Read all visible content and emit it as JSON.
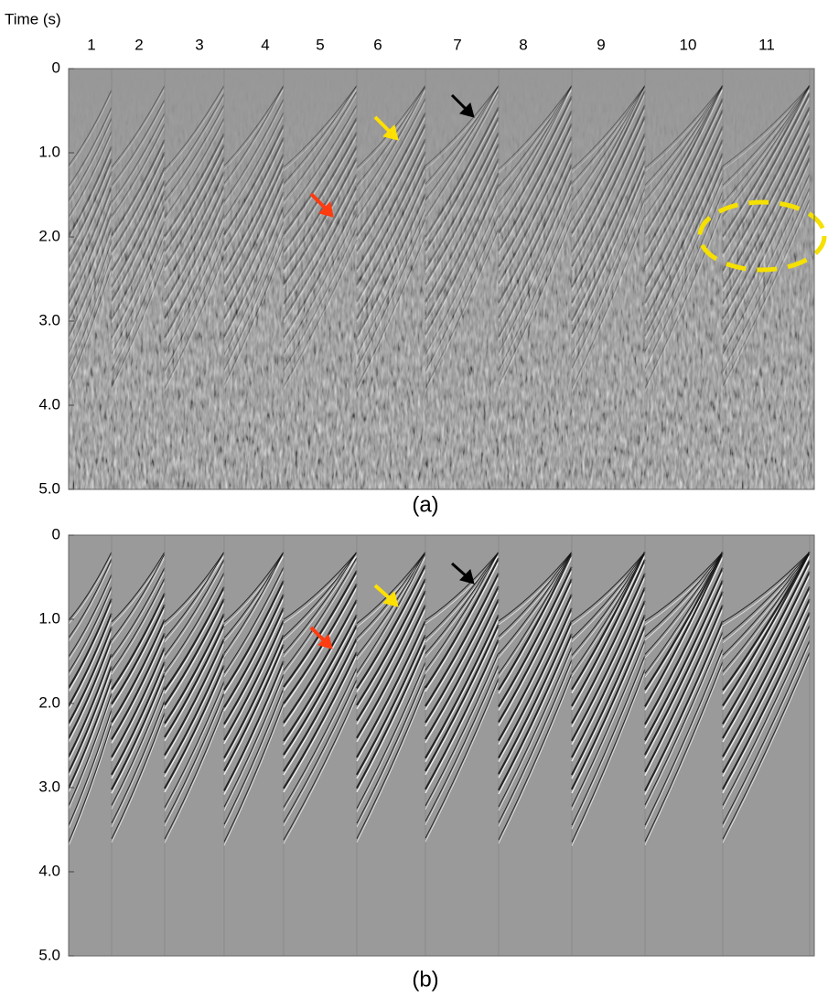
{
  "figure": {
    "y_axis_label": "Time (s)",
    "shot_labels": [
      "1",
      "2",
      "3",
      "4",
      "5",
      "6",
      "7",
      "8",
      "9",
      "10",
      "11"
    ],
    "panels": [
      {
        "caption": "(a)",
        "yticks": [
          "0",
          "1.0",
          "2.0",
          "3.0",
          "4.0",
          "5.0"
        ]
      },
      {
        "caption": "(b)",
        "yticks": [
          "0",
          "1.0",
          "2.0",
          "3.0",
          "4.0",
          "5.0"
        ]
      }
    ]
  }
}
